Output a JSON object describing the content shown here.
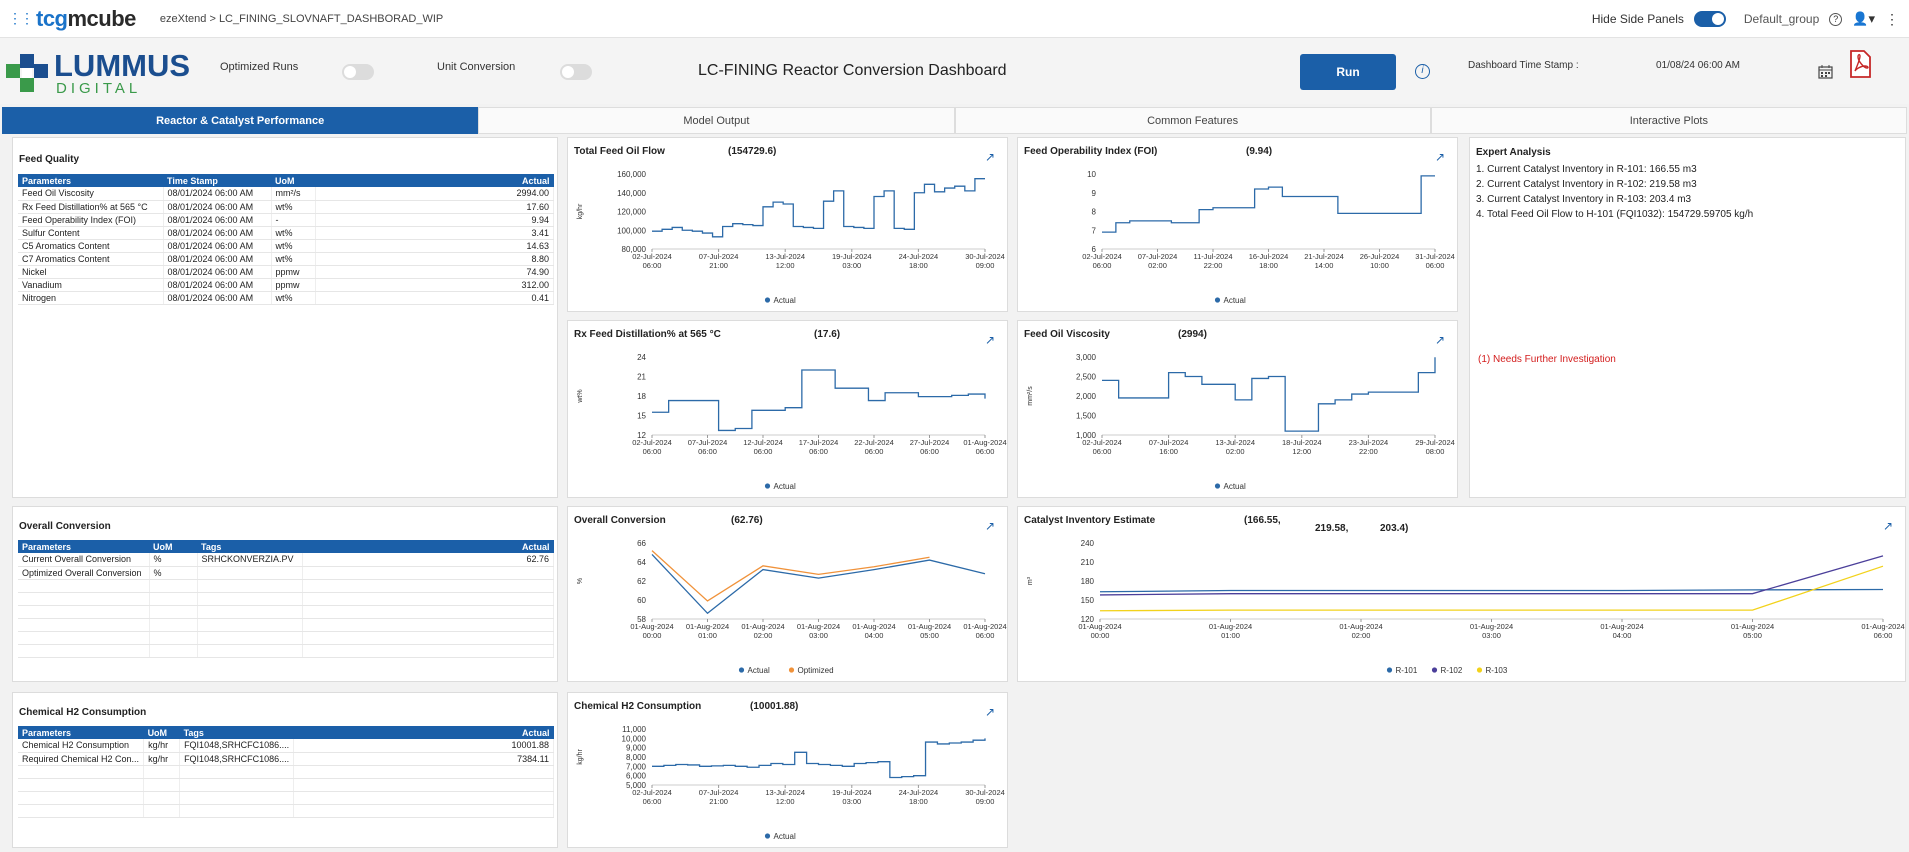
{
  "topbar": {
    "brand_prefix": "tcg",
    "brand_suffix": "mcube",
    "breadcrumb": "ezeXtend >  LC_FINING_SLOVNAFT_DASHBORAD_WIP",
    "hide_side_panels": "Hide Side Panels",
    "group": "Default_group"
  },
  "header": {
    "logo_top": "LUMMUS",
    "logo_bottom": "DIGITAL",
    "optimized_runs": "Optimized Runs",
    "unit_conversion": "Unit Conversion",
    "title": "LC-FINING Reactor Conversion Dashboard",
    "run_label": "Run",
    "timestamp_label": "Dashboard Time Stamp :",
    "timestamp_value": "01/08/24 06:00 AM"
  },
  "tabs": [
    "Reactor & Catalyst Performance",
    "Model Output",
    "Common Features",
    "Interactive Plots"
  ],
  "feed_quality": {
    "title": "Feed Quality",
    "headers": [
      "Parameters",
      "Time Stamp",
      "UoM",
      "Actual"
    ],
    "rows": [
      [
        "Feed Oil Viscosity",
        "08/01/2024 06:00 AM",
        "mm²/s",
        "2994.00"
      ],
      [
        "Rx Feed Distillation% at 565 °C",
        "08/01/2024 06:00 AM",
        "wt%",
        "17.60"
      ],
      [
        "Feed Operability Index (FOI)",
        "08/01/2024 06:00 AM",
        "-",
        "9.94"
      ],
      [
        "Sulfur Content",
        "08/01/2024 06:00 AM",
        "wt%",
        "3.41"
      ],
      [
        "C5 Aromatics Content",
        "08/01/2024 06:00 AM",
        "wt%",
        "14.63"
      ],
      [
        "C7 Aromatics Content",
        "08/01/2024 06:00 AM",
        "wt%",
        "8.80"
      ],
      [
        "Nickel",
        "08/01/2024 06:00 AM",
        "ppmw",
        "74.90"
      ],
      [
        "Vanadium",
        "08/01/2024 06:00 AM",
        "ppmw",
        "312.00"
      ],
      [
        "Nitrogen",
        "08/01/2024 06:00 AM",
        "wt%",
        "0.41"
      ]
    ]
  },
  "overall_conversion_table": {
    "title": "Overall Conversion",
    "headers": [
      "Parameters",
      "UoM",
      "Tags",
      "Actual"
    ],
    "rows": [
      [
        "Current Overall Conversion",
        "%",
        "SRHCKONVERZIA.PV",
        "62.76"
      ],
      [
        "Optimized Overall Conversion",
        "%",
        "",
        ""
      ]
    ]
  },
  "h2_table": {
    "title": "Chemical H2 Consumption",
    "headers": [
      "Parameters",
      "UoM",
      "Tags",
      "Actual"
    ],
    "rows": [
      [
        "Chemical H2 Consumption",
        "kg/hr",
        "FQI1048,SRHCFC1086....",
        "10001.88"
      ],
      [
        "Required Chemical H2 Con...",
        "kg/hr",
        "FQI1048,SRHCFC1086....",
        "7384.11"
      ]
    ]
  },
  "expert": {
    "title": "Expert Analysis",
    "lines": [
      "1. Current Catalyst Inventory in R-101: 166.55 m3",
      "2. Current Catalyst Inventory in R-102: 219.58 m3",
      "3. Current Catalyst Inventory in R-103: 203.4 m3",
      "4. Total Feed Oil Flow to H-101 (FQI1032): 154729.59705 kg/h"
    ],
    "warning": "(1) Needs Further Investigation"
  },
  "chart_data": [
    {
      "id": "feed-oil-flow",
      "type": "line",
      "title": "Total Feed Oil Flow",
      "headline": "(154729.6)",
      "ylabel": "kg/hr",
      "ylim": [
        80000,
        160000
      ],
      "yticks": [
        "160,000",
        "140,000",
        "120,000",
        "100,000",
        "80,000"
      ],
      "xticks": [
        "02-Jul-2024\n06:00",
        "07-Jul-2024\n21:00",
        "13-Jul-2024\n12:00",
        "19-Jul-2024\n03:00",
        "24-Jul-2024\n18:00",
        "30-Jul-2024\n09:00"
      ],
      "legend": [
        "Actual"
      ],
      "series": [
        {
          "name": "Actual",
          "color": "#2c6aa8",
          "y": [
            99000,
            101000,
            103000,
            100000,
            99000,
            97000,
            93000,
            104000,
            107000,
            106000,
            105000,
            125000,
            130000,
            128000,
            104000,
            103000,
            102000,
            131000,
            142000,
            104000,
            103000,
            102000,
            136000,
            142000,
            102000,
            101000,
            140000,
            149000,
            141000,
            145000,
            147000,
            142000,
            155000,
            155000
          ]
        }
      ]
    },
    {
      "id": "foi",
      "type": "line",
      "title": "Feed Operability Index (FOI)",
      "headline": "(9.94)",
      "ylabel": "",
      "ylim": [
        6,
        10
      ],
      "yticks": [
        "10",
        "9",
        "8",
        "7",
        "6"
      ],
      "xticks": [
        "02-Jul-2024\n06:00",
        "07-Jul-2024\n02:00",
        "11-Jul-2024\n22:00",
        "16-Jul-2024\n18:00",
        "21-Jul-2024\n14:00",
        "26-Jul-2024\n10:00",
        "31-Jul-2024\n06:00"
      ],
      "legend": [
        "Actual"
      ],
      "series": [
        {
          "name": "Actual",
          "color": "#2c6aa8",
          "y": [
            6.9,
            7.4,
            7.5,
            7.5,
            7.5,
            7.4,
            7.4,
            8.1,
            8.2,
            8.2,
            8.2,
            9.2,
            9.3,
            8.8,
            8.8,
            8.8,
            8.8,
            7.9,
            7.9,
            7.9,
            7.9,
            7.9,
            7.9,
            9.9,
            9.9
          ]
        }
      ]
    },
    {
      "id": "rx-distillation",
      "type": "line",
      "title": "Rx Feed Distillation% at 565 °C",
      "headline": "(17.6)",
      "ylabel": "wt%",
      "ylim": [
        12,
        24
      ],
      "yticks": [
        "24",
        "21",
        "18",
        "15",
        "12"
      ],
      "xticks": [
        "02-Jul-2024\n06:00",
        "07-Jul-2024\n06:00",
        "12-Jul-2024\n06:00",
        "17-Jul-2024\n06:00",
        "22-Jul-2024\n06:00",
        "27-Jul-2024\n06:00",
        "01-Aug-2024\n06:00"
      ],
      "legend": [
        "Actual"
      ],
      "series": [
        {
          "name": "Actual",
          "color": "#2c6aa8",
          "y": [
            15.5,
            17.3,
            17.3,
            17.3,
            12.7,
            13.0,
            15.8,
            15.8,
            16.2,
            22.0,
            22.0,
            19.2,
            19.2,
            17.3,
            18.5,
            18.5,
            17.9,
            17.9,
            18.1,
            18.3,
            17.6
          ]
        }
      ]
    },
    {
      "id": "viscosity",
      "type": "line",
      "title": "Feed Oil Viscosity",
      "headline": "(2994)",
      "ylabel": "mm²/s",
      "ylim": [
        1000,
        3000
      ],
      "yticks": [
        "3,000",
        "2,500",
        "2,000",
        "1,500",
        "1,000"
      ],
      "xticks": [
        "02-Jul-2024\n06:00",
        "07-Jul-2024\n16:00",
        "13-Jul-2024\n02:00",
        "18-Jul-2024\n12:00",
        "23-Jul-2024\n22:00",
        "29-Jul-2024\n08:00"
      ],
      "legend": [
        "Actual"
      ],
      "series": [
        {
          "name": "Actual",
          "color": "#2c6aa8",
          "y": [
            2400,
            1950,
            1950,
            1950,
            2600,
            2500,
            2300,
            2300,
            1900,
            2450,
            2500,
            1100,
            1100,
            1800,
            1900,
            2050,
            2100,
            2100,
            2100,
            2600,
            2994
          ]
        }
      ]
    },
    {
      "id": "overall-conversion",
      "type": "line",
      "title": "Overall Conversion",
      "headline": "(62.76)",
      "ylabel": "%",
      "ylim": [
        58,
        66
      ],
      "yticks": [
        "66",
        "64",
        "62",
        "60",
        "58"
      ],
      "xticks": [
        "01-Aug-2024\n00:00",
        "01-Aug-2024\n01:00",
        "01-Aug-2024\n02:00",
        "01-Aug-2024\n03:00",
        "01-Aug-2024\n04:00",
        "01-Aug-2024\n05:00",
        "01-Aug-2024\n06:00"
      ],
      "legend": [
        "Actual",
        "Optimized"
      ],
      "series": [
        {
          "name": "Actual",
          "color": "#2c6aa8",
          "y": [
            64.8,
            58.6,
            63.2,
            62.3,
            63.2,
            64.2,
            62.76
          ]
        },
        {
          "name": "Optimized",
          "color": "#f0923a",
          "y": [
            65.2,
            59.9,
            63.6,
            62.7,
            63.5,
            64.5,
            null
          ]
        }
      ]
    },
    {
      "id": "catalyst-inventory",
      "type": "line",
      "title": "Catalyst Inventory Estimate",
      "headline": "(166.55,",
      "headline2": "219.58,",
      "headline3": "203.4)",
      "ylabel": "m³",
      "ylim": [
        120,
        240
      ],
      "yticks": [
        "240",
        "210",
        "180",
        "150",
        "120"
      ],
      "xticks": [
        "01-Aug-2024\n00:00",
        "01-Aug-2024\n01:00",
        "01-Aug-2024\n02:00",
        "01-Aug-2024\n03:00",
        "01-Aug-2024\n04:00",
        "01-Aug-2024\n05:00",
        "01-Aug-2024\n06:00"
      ],
      "legend": [
        "R-101",
        "R-102",
        "R-103"
      ],
      "series": [
        {
          "name": "R-101",
          "color": "#2c6aa8",
          "y": [
            163,
            165,
            165,
            165,
            165,
            166,
            166.55
          ]
        },
        {
          "name": "R-102",
          "color": "#4b3f9a",
          "y": [
            158,
            160,
            160,
            160,
            160,
            160,
            219.58
          ]
        },
        {
          "name": "R-103",
          "color": "#f2d21b",
          "y": [
            133,
            134,
            134,
            134,
            134,
            134,
            203.4
          ]
        }
      ]
    },
    {
      "id": "h2-consumption",
      "type": "line",
      "title": "Chemical H2 Consumption",
      "headline": "(10001.88)",
      "ylabel": "kg/hr",
      "ylim": [
        5000,
        11000
      ],
      "yticks": [
        "11,000",
        "10,000",
        "9,000",
        "8,000",
        "7,000",
        "6,000",
        "5,000"
      ],
      "xticks": [
        "02-Jul-2024\n06:00",
        "07-Jul-2024\n21:00",
        "13-Jul-2024\n12:00",
        "19-Jul-2024\n03:00",
        "24-Jul-2024\n18:00",
        "30-Jul-2024\n09:00"
      ],
      "legend": [
        "Actual"
      ],
      "series": [
        {
          "name": "Actual",
          "color": "#2c6aa8",
          "y": [
            7000,
            7100,
            7200,
            7150,
            7000,
            7050,
            7100,
            7000,
            6900,
            7100,
            7300,
            7200,
            8500,
            7300,
            7200,
            7100,
            7000,
            7300,
            7400,
            7500,
            5800,
            5900,
            6000,
            9600,
            9400,
            9500,
            9600,
            9800,
            10001
          ]
        }
      ]
    }
  ]
}
